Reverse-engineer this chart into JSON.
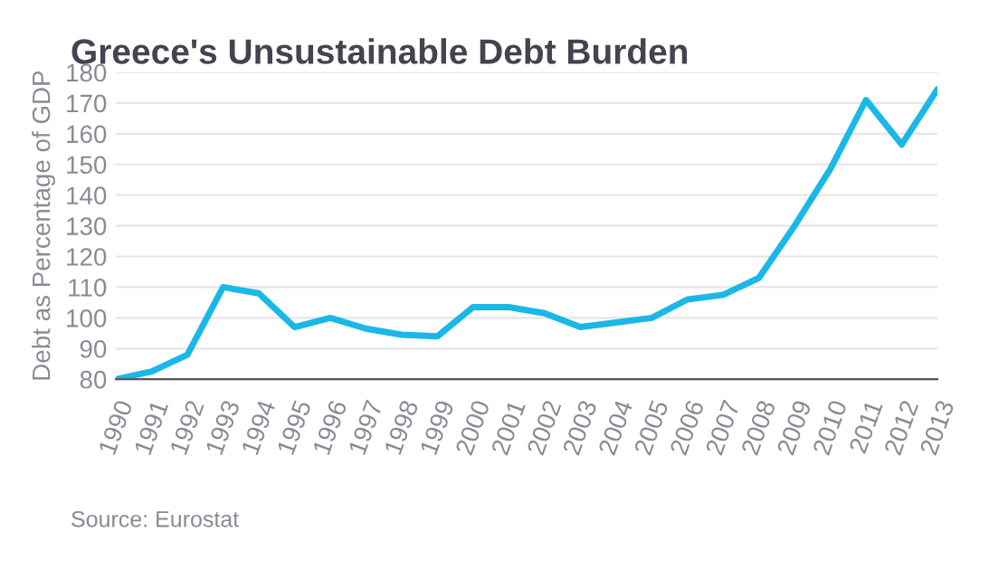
{
  "chart_data": {
    "type": "line",
    "title": "Greece's Unsustainable Debt Burden",
    "ylabel": "Debt as Percentage of GDP",
    "categories": [
      "1990",
      "1991",
      "1992",
      "1993",
      "1994",
      "1995",
      "1996",
      "1997",
      "1998",
      "1999",
      "2000",
      "2001",
      "2002",
      "2003",
      "2004",
      "2005",
      "2006",
      "2007",
      "2008",
      "2009",
      "2010",
      "2011",
      "2012",
      "2013"
    ],
    "series": [
      {
        "color": "#1ab8e6",
        "values": [
          80,
          82.5,
          88,
          110,
          108,
          97,
          100,
          96.5,
          94.5,
          94,
          103.5,
          103.5,
          101.5,
          97,
          98.5,
          100,
          106,
          107.5,
          113,
          130,
          148.5,
          171,
          156.5,
          174.5
        ]
      }
    ],
    "ylim": [
      80,
      180
    ],
    "yticks": [
      80,
      90,
      100,
      110,
      120,
      130,
      140,
      150,
      160,
      170,
      180
    ],
    "grid": "y",
    "legend": false,
    "marker": "none",
    "line_style": "solid",
    "annotations": [
      "Source: Eurostat"
    ]
  }
}
